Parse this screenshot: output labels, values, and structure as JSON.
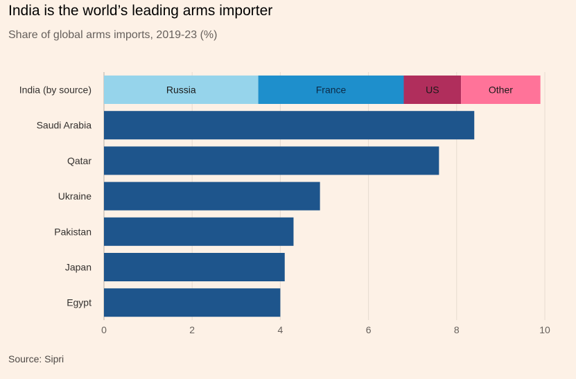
{
  "header": {
    "title": "India is the world’s leading arms importer",
    "subtitle": "Share of global arms imports, 2019-23 (%)"
  },
  "footer": {
    "source": "Source: Sipri"
  },
  "colors": {
    "background": "#fdf1e6",
    "bar": "#1e558c",
    "grid": "#e6dbd0",
    "text": "#33302e"
  },
  "chart_data": {
    "type": "bar",
    "orientation": "horizontal",
    "title": "India is the world’s leading arms importer",
    "subtitle": "Share of global arms imports, 2019-23 (%)",
    "xlim": [
      0,
      10
    ],
    "xticks": [
      0,
      2,
      4,
      6,
      8,
      10
    ],
    "grid": true,
    "stacked_row": {
      "category": "India (by source)",
      "segments": [
        {
          "name": "Russia",
          "value": 3.5,
          "color": "#96d4eb"
        },
        {
          "name": "France",
          "value": 3.3,
          "color": "#1e8fcc"
        },
        {
          "name": "US",
          "value": 1.3,
          "color": "#b02e5c"
        },
        {
          "name": "Other",
          "value": 1.8,
          "color": "#ff7399"
        }
      ]
    },
    "categories": [
      "Saudi Arabia",
      "Qatar",
      "Ukraine",
      "Pakistan",
      "Japan",
      "Egypt"
    ],
    "values": [
      8.4,
      7.6,
      4.9,
      4.3,
      4.1,
      4.0
    ],
    "bar_color": "#1e558c"
  }
}
